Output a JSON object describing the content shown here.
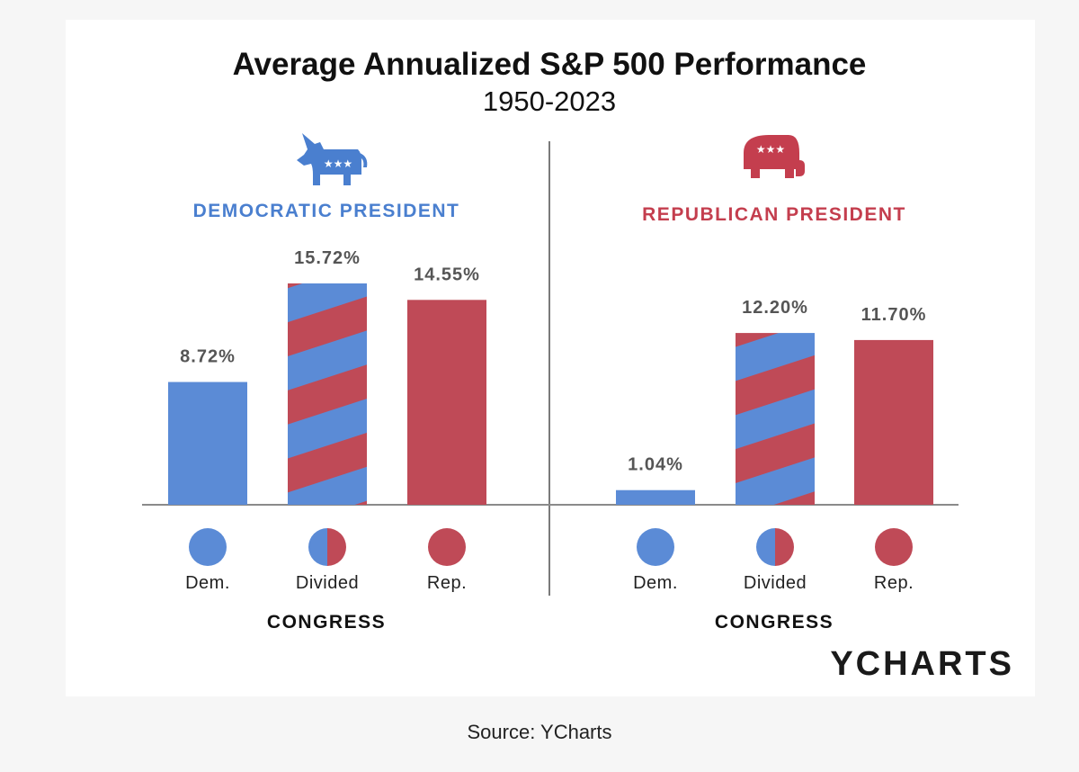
{
  "chart_data": {
    "type": "bar",
    "title": "Average Annualized S&P 500 Performance",
    "subtitle": "1950-2023",
    "xlabel": "CONGRESS",
    "unit": "%",
    "ylim": [
      0,
      16
    ],
    "colors": {
      "dem": "#5b8bd6",
      "rep": "#bf4a57"
    },
    "panels": [
      {
        "name": "DEMOCRATIC PRESIDENT",
        "icon": "donkey-icon",
        "color": "#4a7fcf",
        "categories": [
          "Dem.",
          "Divided",
          "Rep."
        ],
        "values": [
          8.72,
          15.72,
          14.55
        ],
        "labels": [
          "8.72%",
          "15.72%",
          "14.55%"
        ]
      },
      {
        "name": "REPUBLICAN PRESIDENT",
        "icon": "elephant-icon",
        "color": "#c43e4e",
        "categories": [
          "Dem.",
          "Divided",
          "Rep."
        ],
        "values": [
          1.04,
          12.2,
          11.7
        ],
        "labels": [
          "1.04%",
          "12.20%",
          "11.70%"
        ]
      }
    ]
  },
  "brand": "YCHARTS",
  "source": "Source: YCharts"
}
